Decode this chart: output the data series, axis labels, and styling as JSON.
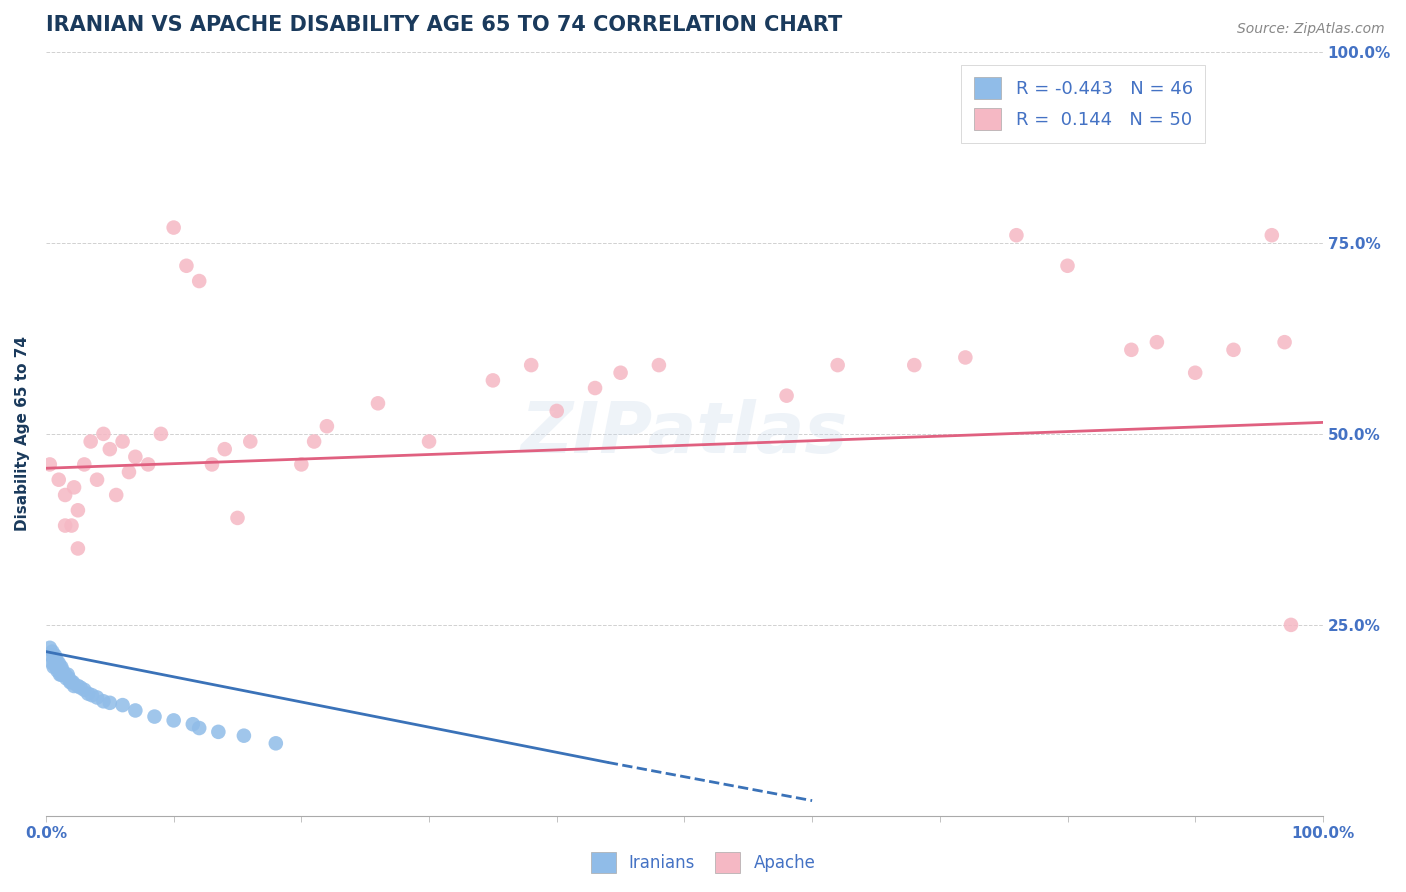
{
  "title": "IRANIAN VS APACHE DISABILITY AGE 65 TO 74 CORRELATION CHART",
  "source_text": "Source: ZipAtlas.com",
  "ylabel": "Disability Age 65 to 74",
  "xlim": [
    0.0,
    1.0
  ],
  "ylim": [
    0.0,
    1.0
  ],
  "background_color": "#ffffff",
  "grid_color": "#cccccc",
  "watermark_text": "ZIPatlas",
  "iranians_color": "#90bce8",
  "apache_color": "#f5b8c4",
  "trendline_iranian_color": "#3a72b8",
  "trendline_apache_color": "#e06080",
  "title_color": "#1a3a5c",
  "title_fontsize": 15,
  "axis_label_color": "#1a3a5c",
  "tick_label_color": "#4472c4",
  "legend_text_color": "#4472c4",
  "source_color": "#888888",
  "iranians_x": [
    0.003,
    0.004,
    0.005,
    0.005,
    0.006,
    0.006,
    0.007,
    0.007,
    0.008,
    0.008,
    0.009,
    0.009,
    0.01,
    0.01,
    0.011,
    0.011,
    0.012,
    0.012,
    0.013,
    0.013,
    0.014,
    0.015,
    0.016,
    0.017,
    0.018,
    0.019,
    0.02,
    0.021,
    0.022,
    0.025,
    0.027,
    0.03,
    0.033,
    0.036,
    0.04,
    0.045,
    0.05,
    0.06,
    0.07,
    0.085,
    0.1,
    0.115,
    0.135,
    0.155,
    0.18,
    0.12
  ],
  "iranians_y": [
    0.22,
    0.21,
    0.215,
    0.2,
    0.205,
    0.195,
    0.2,
    0.21,
    0.195,
    0.205,
    0.2,
    0.19,
    0.2,
    0.195,
    0.195,
    0.185,
    0.185,
    0.195,
    0.19,
    0.185,
    0.185,
    0.185,
    0.18,
    0.185,
    0.18,
    0.175,
    0.175,
    0.175,
    0.17,
    0.17,
    0.168,
    0.165,
    0.16,
    0.158,
    0.155,
    0.15,
    0.148,
    0.145,
    0.138,
    0.13,
    0.125,
    0.12,
    0.11,
    0.105,
    0.095,
    0.115
  ],
  "apache_x": [
    0.003,
    0.01,
    0.015,
    0.02,
    0.022,
    0.025,
    0.03,
    0.035,
    0.04,
    0.045,
    0.05,
    0.055,
    0.06,
    0.065,
    0.07,
    0.08,
    0.09,
    0.1,
    0.11,
    0.12,
    0.13,
    0.14,
    0.15,
    0.16,
    0.2,
    0.21,
    0.22,
    0.26,
    0.3,
    0.35,
    0.38,
    0.4,
    0.43,
    0.45,
    0.48,
    0.58,
    0.62,
    0.68,
    0.72,
    0.76,
    0.8,
    0.85,
    0.87,
    0.9,
    0.93,
    0.96,
    0.97,
    0.975,
    0.015,
    0.025
  ],
  "apache_y": [
    0.46,
    0.44,
    0.42,
    0.38,
    0.43,
    0.4,
    0.46,
    0.49,
    0.44,
    0.5,
    0.48,
    0.42,
    0.49,
    0.45,
    0.47,
    0.46,
    0.5,
    0.77,
    0.72,
    0.7,
    0.46,
    0.48,
    0.39,
    0.49,
    0.46,
    0.49,
    0.51,
    0.54,
    0.49,
    0.57,
    0.59,
    0.53,
    0.56,
    0.58,
    0.59,
    0.55,
    0.59,
    0.59,
    0.6,
    0.76,
    0.72,
    0.61,
    0.62,
    0.58,
    0.61,
    0.76,
    0.62,
    0.25,
    0.38,
    0.35
  ],
  "trendline_ir_x0": 0.0,
  "trendline_ir_x1": 0.44,
  "trendline_ir_x_dash0": 0.44,
  "trendline_ir_x_dash1": 0.6,
  "trendline_ir_y0": 0.215,
  "trendline_ir_y1": 0.07,
  "trendline_ir_yd0": 0.07,
  "trendline_ir_yd1": 0.02,
  "trendline_ap_x0": 0.0,
  "trendline_ap_x1": 1.0,
  "trendline_ap_y0": 0.455,
  "trendline_ap_y1": 0.515,
  "ytick_positions": [
    0.25,
    0.5,
    0.75,
    1.0
  ],
  "ytick_labels": [
    "25.0%",
    "50.0%",
    "75.0%",
    "100.0%"
  ],
  "xtick_positions": [
    0.0,
    0.1,
    0.2,
    0.3,
    0.4,
    0.5,
    0.6,
    0.7,
    0.8,
    0.9,
    1.0
  ],
  "marker_size": 110
}
